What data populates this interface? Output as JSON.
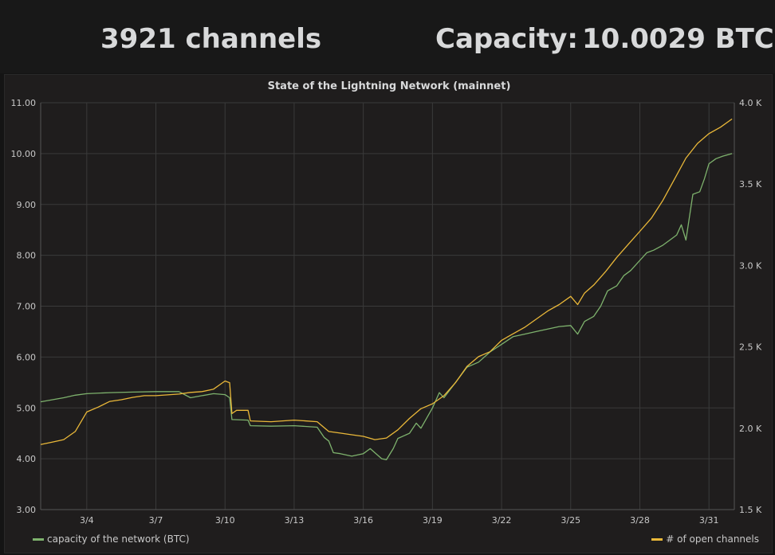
{
  "header": {
    "channels_stat": "3921 channels",
    "capacity_label": "Capacity:",
    "capacity_value": "10.0029 BTC"
  },
  "panel": {
    "title": "State of the Lightning Network (mainnet)"
  },
  "legend": {
    "left": "capacity of the network (BTC)",
    "right": "# of open channels"
  },
  "colors": {
    "capacity": "#7eb26d",
    "channels": "#eab839",
    "grid": "#3a3a3a",
    "background": "#1f1d1d"
  },
  "chart_data": {
    "type": "line",
    "title": "State of the Lightning Network (mainnet)",
    "x_ticks": [
      "3/4",
      "3/7",
      "3/10",
      "3/13",
      "3/16",
      "3/19",
      "3/22",
      "3/25",
      "3/28",
      "3/31"
    ],
    "x_tick_days": [
      4,
      7,
      10,
      13,
      16,
      19,
      22,
      25,
      28,
      31
    ],
    "xlim": [
      2,
      32.1
    ],
    "y_left": {
      "ticks": [
        "3.00",
        "4.00",
        "5.00",
        "6.00",
        "7.00",
        "8.00",
        "9.00",
        "10.00",
        "11.00"
      ],
      "lim": [
        3,
        11
      ]
    },
    "y_right": {
      "ticks": [
        "1.5 K",
        "2.0 K",
        "2.5 K",
        "3.0 K",
        "3.5 K",
        "4.0 K"
      ],
      "lim": [
        1500,
        4000
      ]
    },
    "series": [
      {
        "name": "capacity of the network (BTC)",
        "axis": "left",
        "color": "#7eb26d",
        "x": [
          2.0,
          3.0,
          3.5,
          4.0,
          5.0,
          6.0,
          7.0,
          8.0,
          8.5,
          9.0,
          9.5,
          10.0,
          10.2,
          10.3,
          11.0,
          11.1,
          12.0,
          13.0,
          14.0,
          14.3,
          14.5,
          14.7,
          15.0,
          15.5,
          16.0,
          16.3,
          16.5,
          16.8,
          17.0,
          17.3,
          17.5,
          18.0,
          18.3,
          18.5,
          19.0,
          19.3,
          19.5,
          20.0,
          20.5,
          21.0,
          21.5,
          22.0,
          22.5,
          23.0,
          23.5,
          24.0,
          24.5,
          25.0,
          25.3,
          25.6,
          26.0,
          26.3,
          26.6,
          27.0,
          27.3,
          27.6,
          28.0,
          28.3,
          28.6,
          29.0,
          29.3,
          29.6,
          29.8,
          30.0,
          30.3,
          30.6,
          30.8,
          31.0,
          31.3,
          31.6,
          32.0
        ],
        "y": [
          5.12,
          5.2,
          5.25,
          5.28,
          5.3,
          5.31,
          5.32,
          5.32,
          5.2,
          5.24,
          5.28,
          5.26,
          5.2,
          4.77,
          4.76,
          4.65,
          4.64,
          4.65,
          4.62,
          4.42,
          4.35,
          4.12,
          4.1,
          4.05,
          4.1,
          4.2,
          4.12,
          4.0,
          3.98,
          4.2,
          4.4,
          4.5,
          4.7,
          4.6,
          5.0,
          5.3,
          5.2,
          5.5,
          5.8,
          5.9,
          6.1,
          6.25,
          6.4,
          6.45,
          6.5,
          6.55,
          6.6,
          6.62,
          6.45,
          6.7,
          6.8,
          7.0,
          7.3,
          7.4,
          7.6,
          7.7,
          7.9,
          8.05,
          8.1,
          8.2,
          8.3,
          8.4,
          8.6,
          8.3,
          9.2,
          9.25,
          9.5,
          9.8,
          9.9,
          9.95,
          10.0
        ]
      },
      {
        "name": "# of open channels",
        "axis": "right",
        "color": "#eab839",
        "x": [
          2.0,
          2.5,
          3.0,
          3.5,
          4.0,
          4.5,
          5.0,
          5.5,
          6.0,
          6.5,
          7.0,
          7.5,
          8.0,
          8.5,
          9.0,
          9.5,
          9.8,
          10.0,
          10.2,
          10.3,
          10.5,
          11.0,
          11.1,
          12.0,
          13.0,
          14.0,
          14.5,
          15.0,
          15.5,
          16.0,
          16.5,
          17.0,
          17.5,
          18.0,
          18.5,
          19.0,
          19.5,
          20.0,
          20.5,
          21.0,
          21.5,
          22.0,
          22.5,
          23.0,
          23.5,
          24.0,
          24.5,
          25.0,
          25.3,
          25.6,
          26.0,
          26.5,
          27.0,
          27.5,
          28.0,
          28.5,
          29.0,
          29.5,
          30.0,
          30.5,
          31.0,
          31.5,
          32.0
        ],
        "y": [
          1900,
          1915,
          1930,
          1980,
          2100,
          2130,
          2165,
          2175,
          2190,
          2200,
          2200,
          2205,
          2210,
          2220,
          2225,
          2240,
          2270,
          2290,
          2280,
          2090,
          2110,
          2110,
          2045,
          2040,
          2050,
          2040,
          1980,
          1970,
          1960,
          1950,
          1930,
          1940,
          1990,
          2060,
          2120,
          2150,
          2200,
          2280,
          2380,
          2440,
          2470,
          2540,
          2580,
          2620,
          2670,
          2720,
          2760,
          2810,
          2760,
          2830,
          2880,
          2960,
          3050,
          3130,
          3210,
          3290,
          3400,
          3530,
          3660,
          3750,
          3810,
          3850,
          3900
        ]
      }
    ]
  }
}
